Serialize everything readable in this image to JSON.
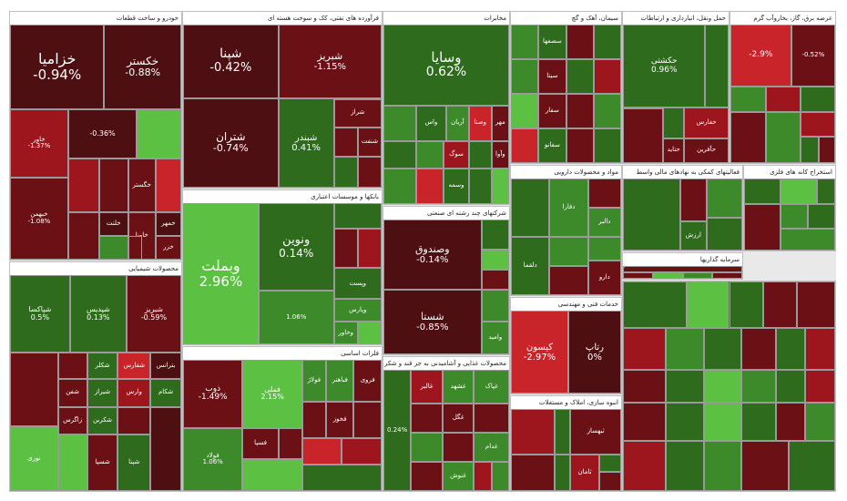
{
  "palette": {
    "dg": "#2e6b1d",
    "g": "#3d8a2a",
    "lg": "#5cc043",
    "br": "#4d0f12",
    "dr": "#6b1116",
    "r": "#9e161d",
    "rr": "#c8242a"
  },
  "sectors": [
    {
      "title": "خودرو و ساخت قطعات",
      "tiles": [
        {
          "name": "خزامیا",
          "pct": "-0.94%",
          "c": "br"
        },
        {
          "name": "خکستر",
          "pct": "-0.88%",
          "c": "br"
        },
        {
          "name": "خاور",
          "pct": "-1.37%",
          "c": "r"
        },
        {
          "name": "",
          "pct": "-0.36%",
          "c": "br"
        },
        {
          "name": "",
          "pct": "",
          "c": "lg"
        },
        {
          "name": "خبهمن",
          "pct": "-1.08%",
          "c": "dr"
        },
        {
          "name": "",
          "pct": "",
          "c": "r"
        },
        {
          "name": "",
          "pct": "",
          "c": "dr"
        },
        {
          "name": "خگستر",
          "pct": "",
          "c": "dr"
        },
        {
          "name": "",
          "pct": "",
          "c": "rr"
        },
        {
          "name": "",
          "pct": "",
          "c": "dr"
        },
        {
          "name": "خلنت",
          "pct": "",
          "c": "br"
        },
        {
          "name": "",
          "pct": "",
          "c": "g"
        },
        {
          "name": "خاونا",
          "pct": "",
          "c": "dr"
        },
        {
          "name": "خمهر",
          "pct": "",
          "c": "br"
        },
        {
          "name": "خزر",
          "pct": "",
          "c": "dr"
        },
        {
          "name": "",
          "pct": "",
          "c": "dr"
        }
      ]
    },
    {
      "title": "محصولات شیمیایی",
      "tiles": [
        {
          "name": "شپاکسا",
          "pct": "0.5%",
          "c": "dg"
        },
        {
          "name": "شپدیس",
          "pct": "0.13%",
          "c": "dg"
        },
        {
          "name": "شبریز",
          "pct": "-0.59%",
          "c": "dr"
        },
        {
          "name": "",
          "pct": "",
          "c": "dr"
        },
        {
          "name": "",
          "pct": "",
          "c": "dr"
        },
        {
          "name": "شکلر",
          "pct": "",
          "c": "dg"
        },
        {
          "name": "شفارس",
          "pct": "",
          "c": "rr"
        },
        {
          "name": "بترانس",
          "pct": "",
          "c": "br"
        },
        {
          "name": "شفن",
          "pct": "",
          "c": "dr"
        },
        {
          "name": "شیراز",
          "pct": "",
          "c": "dg"
        },
        {
          "name": "وارس",
          "pct": "",
          "c": "r"
        },
        {
          "name": "شکام",
          "pct": "",
          "c": "dg"
        },
        {
          "name": "نوری",
          "pct": "",
          "c": "lg"
        },
        {
          "name": "زاگرس",
          "pct": "",
          "c": "dr"
        },
        {
          "name": "شکربن",
          "pct": "",
          "c": "dg"
        },
        {
          "name": "",
          "pct": "",
          "c": "dr"
        },
        {
          "name": "",
          "pct": "",
          "c": "lg"
        },
        {
          "name": "شسپا",
          "pct": "",
          "c": "dr"
        },
        {
          "name": "شپنا",
          "pct": "",
          "c": "dg"
        },
        {
          "name": "",
          "pct": "",
          "c": "br"
        }
      ]
    },
    {
      "title": "فرآورده های نفتی، کک و سوخت هسته ای",
      "tiles": [
        {
          "name": "شپنا",
          "pct": "-0.42%",
          "c": "br"
        },
        {
          "name": "شبریز",
          "pct": "-1.15%",
          "c": "dr"
        },
        {
          "name": "شتران",
          "pct": "-0.74%",
          "c": "br"
        },
        {
          "name": "شبندر",
          "pct": "0.41%",
          "c": "dg"
        },
        {
          "name": "شراز",
          "pct": "",
          "c": "dr"
        },
        {
          "name": "",
          "pct": "",
          "c": "dr"
        },
        {
          "name": "شنفت",
          "pct": "",
          "c": "dr"
        },
        {
          "name": "",
          "pct": "",
          "c": "dg"
        },
        {
          "name": "",
          "pct": "",
          "c": "dr"
        },
        {
          "name": "",
          "pct": "",
          "c": "dr"
        }
      ]
    },
    {
      "title": "بانکها و موسسات اعتباری",
      "tiles": [
        {
          "name": "وبملت",
          "pct": "2.96%",
          "c": "lg"
        },
        {
          "name": "ونوین",
          "pct": "0.14%",
          "c": "dg"
        },
        {
          "name": "",
          "pct": "",
          "c": "dg"
        },
        {
          "name": "",
          "pct": "",
          "c": "dr"
        },
        {
          "name": "",
          "pct": "",
          "c": "r"
        },
        {
          "name": "وپست",
          "pct": "",
          "c": "dg"
        },
        {
          "name": "",
          "pct": "1.06%",
          "c": "g"
        },
        {
          "name": "وپارس",
          "pct": "",
          "c": "g"
        },
        {
          "name": "وخاور",
          "pct": "",
          "c": "g"
        },
        {
          "name": "",
          "pct": "",
          "c": "lg"
        }
      ]
    },
    {
      "title": "فلزات اساسی",
      "tiles": [
        {
          "name": "ذوب",
          "pct": "-1.49%",
          "c": "dr"
        },
        {
          "name": "فملی",
          "pct": "2.15%",
          "c": "lg"
        },
        {
          "name": "فولاد",
          "pct": "1.06%",
          "c": "g"
        },
        {
          "name": "فولاژ",
          "pct": "",
          "c": "g"
        },
        {
          "name": "فباهنر",
          "pct": "",
          "c": "g"
        },
        {
          "name": "فروی",
          "pct": "",
          "c": "dr"
        },
        {
          "name": "",
          "pct": "",
          "c": "dr"
        },
        {
          "name": "فخوز",
          "pct": "",
          "c": "dr"
        },
        {
          "name": "",
          "pct": "",
          "c": "dr"
        },
        {
          "name": "فسپا",
          "pct": "",
          "c": "dr"
        },
        {
          "name": "",
          "pct": "",
          "c": "dr"
        },
        {
          "name": "",
          "pct": "",
          "c": "rr"
        },
        {
          "name": "",
          "pct": "",
          "c": "r"
        },
        {
          "name": "",
          "pct": "",
          "c": "lg"
        },
        {
          "name": "",
          "pct": "",
          "c": "dg"
        }
      ]
    },
    {
      "title": "مخابرات",
      "tiles": [
        {
          "name": "وسایا",
          "pct": "0.62%",
          "c": "dg"
        },
        {
          "name": "",
          "pct": "",
          "c": "g"
        },
        {
          "name": "واس",
          "pct": "",
          "c": "dg"
        },
        {
          "name": "آریان",
          "pct": "",
          "c": "g"
        },
        {
          "name": "وصنا",
          "pct": "",
          "c": "rr"
        },
        {
          "name": "مهر",
          "pct": "",
          "c": "dr"
        },
        {
          "name": "",
          "pct": "",
          "c": "dg"
        },
        {
          "name": "",
          "pct": "",
          "c": "g"
        },
        {
          "name": "سوگ",
          "pct": "",
          "c": "r"
        },
        {
          "name": "",
          "pct": "",
          "c": "dg"
        },
        {
          "name": "وآوا",
          "pct": "",
          "c": "dr"
        },
        {
          "name": "",
          "pct": "",
          "c": "g"
        },
        {
          "name": "",
          "pct": "",
          "c": "rr"
        },
        {
          "name": "وسمه",
          "pct": "",
          "c": "dg"
        },
        {
          "name": "",
          "pct": "",
          "c": "dg"
        },
        {
          "name": "",
          "pct": "",
          "c": "lg"
        }
      ]
    },
    {
      "title": "شرکتهای چند رشته ای صنعتی",
      "tiles": [
        {
          "name": "وصندوق",
          "pct": "-0.14%",
          "c": "br"
        },
        {
          "name": "",
          "pct": "",
          "c": "dg"
        },
        {
          "name": "",
          "pct": "",
          "c": "lg"
        },
        {
          "name": "",
          "pct": "",
          "c": "dr"
        },
        {
          "name": "شستا",
          "pct": "-0.85%",
          "c": "br"
        },
        {
          "name": "",
          "pct": "",
          "c": "g"
        },
        {
          "name": "وامید",
          "pct": "",
          "c": "g"
        }
      ]
    },
    {
      "title": "محصولات غذایی و آشامیدنی به جز قند و شکر",
      "tiles": [
        {
          "name": "",
          "pct": "0.24%",
          "c": "dg"
        },
        {
          "name": "غالبر",
          "pct": "",
          "c": "r"
        },
        {
          "name": "غشهد",
          "pct": "",
          "c": "g"
        },
        {
          "name": "غپاک",
          "pct": "",
          "c": "g"
        },
        {
          "name": "",
          "pct": "",
          "c": "dr"
        },
        {
          "name": "غگل",
          "pct": "",
          "c": "dr"
        },
        {
          "name": "",
          "pct": "",
          "c": "dr"
        },
        {
          "name": "",
          "pct": "",
          "c": "g"
        },
        {
          "name": "",
          "pct": "",
          "c": "dr"
        },
        {
          "name": "غدام",
          "pct": "",
          "c": "g"
        },
        {
          "name": "",
          "pct": "",
          "c": "dr"
        },
        {
          "name": "غنوش",
          "pct": "",
          "c": "g"
        },
        {
          "name": "",
          "pct": "",
          "c": "r"
        },
        {
          "name": "",
          "pct": "",
          "c": "g"
        }
      ]
    },
    {
      "title": "سیمان، آهک و گچ",
      "tiles": [
        {
          "name": "",
          "pct": "",
          "c": "g"
        },
        {
          "name": "سصفها",
          "pct": "",
          "c": "dg"
        },
        {
          "name": "",
          "pct": "",
          "c": "dr"
        },
        {
          "name": "",
          "pct": "",
          "c": "dg"
        },
        {
          "name": "",
          "pct": "",
          "c": "g"
        },
        {
          "name": "سیتا",
          "pct": "",
          "c": "dr"
        },
        {
          "name": "",
          "pct": "",
          "c": "dg"
        },
        {
          "name": "",
          "pct": "",
          "c": "r"
        },
        {
          "name": "",
          "pct": "",
          "c": "lg"
        },
        {
          "name": "سفار",
          "pct": "",
          "c": "dr"
        },
        {
          "name": "",
          "pct": "",
          "c": "dr"
        },
        {
          "name": "",
          "pct": "",
          "c": "g"
        },
        {
          "name": "",
          "pct": "",
          "c": "rr"
        },
        {
          "name": "سفانو",
          "pct": "",
          "c": "dg"
        },
        {
          "name": "",
          "pct": "",
          "c": "dr"
        },
        {
          "name": "",
          "pct": "",
          "c": "dg"
        },
        {
          "name": "",
          "pct": "",
          "c": "g"
        }
      ]
    },
    {
      "title": "مواد و محصولات دارویی",
      "tiles": [
        {
          "name": "",
          "pct": "",
          "c": "dg"
        },
        {
          "name": "دفارا",
          "pct": "",
          "c": "g"
        },
        {
          "name": "",
          "pct": "",
          "c": "dr"
        },
        {
          "name": "دالبر",
          "pct": "",
          "c": "g"
        },
        {
          "name": "دلقما",
          "pct": "",
          "c": "dg"
        },
        {
          "name": "",
          "pct": "",
          "c": "rr"
        },
        {
          "name": "",
          "pct": "",
          "c": "g"
        },
        {
          "name": "دارو",
          "pct": "",
          "c": "dr"
        },
        {
          "name": "",
          "pct": "",
          "c": "g"
        },
        {
          "name": "",
          "pct": "",
          "c": "dr"
        }
      ]
    },
    {
      "title": "خدمات فنی و مهندسی",
      "tiles": [
        {
          "name": "کیسون",
          "pct": "-2.97%",
          "c": "rr"
        },
        {
          "name": "رتاپ",
          "pct": "0%",
          "c": "br"
        }
      ]
    },
    {
      "title": "انبوه سازی، املاک و مستغلات",
      "tiles": [
        {
          "name": "",
          "pct": "",
          "c": "r"
        },
        {
          "name": "",
          "pct": "",
          "c": "dg"
        },
        {
          "name": "ثبهساز",
          "pct": "",
          "c": "dr"
        },
        {
          "name": "",
          "pct": "",
          "c": "dr"
        },
        {
          "name": "",
          "pct": "",
          "c": "dg"
        },
        {
          "name": "ثامان",
          "pct": "",
          "c": "r"
        },
        {
          "name": "",
          "pct": "",
          "c": "dg"
        },
        {
          "name": "",
          "pct": "",
          "c": "dr"
        }
      ]
    },
    {
      "title": "حمل ونقل، انبارداری و ارتباطات",
      "tiles": [
        {
          "name": "حکشتی",
          "pct": "0.96%",
          "c": "dg"
        },
        {
          "name": "",
          "pct": "",
          "c": "dg"
        },
        {
          "name": "",
          "pct": "",
          "c": "dr"
        },
        {
          "name": "",
          "pct": "",
          "c": "dg"
        },
        {
          "name": "حتاید",
          "pct": "",
          "c": "dr"
        },
        {
          "name": "حفارس",
          "pct": "",
          "c": "r"
        },
        {
          "name": "حآفرین",
          "pct": "",
          "c": "dr"
        },
        {
          "name": "",
          "pct": "",
          "c": "dg"
        }
      ]
    },
    {
      "title": "فعالیتهای کمکی به نهادهای مالی واسط",
      "tiles": [
        {
          "name": "",
          "pct": "",
          "c": "dg"
        },
        {
          "name": "",
          "pct": "",
          "c": "dr"
        },
        {
          "name": "ارزش",
          "pct": "",
          "c": "dg"
        },
        {
          "name": "",
          "pct": "",
          "c": "g"
        },
        {
          "name": "",
          "pct": "",
          "c": "dg"
        }
      ]
    },
    {
      "title": "سرمایه گذاریها",
      "tiles": [
        {
          "name": "",
          "pct": "",
          "c": "dr"
        },
        {
          "name": "",
          "pct": "",
          "c": "dr"
        },
        {
          "name": "",
          "pct": "",
          "c": "lg"
        },
        {
          "name": "",
          "pct": "",
          "c": "g"
        },
        {
          "name": "",
          "pct": "",
          "c": "dr"
        },
        {
          "name": "",
          "pct": "",
          "c": "br"
        }
      ]
    },
    {
      "title": "عرضه برق، گاز، بخاروآب گرم",
      "tiles": [
        {
          "name": "",
          "pct": "-2.9%",
          "c": "rr"
        },
        {
          "name": "",
          "pct": "-0.52%",
          "c": "dr"
        },
        {
          "name": "",
          "pct": "",
          "c": "g"
        },
        {
          "name": "",
          "pct": "",
          "c": "r"
        },
        {
          "name": "",
          "pct": "",
          "c": "dg"
        },
        {
          "name": "",
          "pct": "",
          "c": "dr"
        },
        {
          "name": "",
          "pct": "",
          "c": "g"
        },
        {
          "name": "",
          "pct": "",
          "c": "r"
        },
        {
          "name": "",
          "pct": "",
          "c": "dg"
        },
        {
          "name": "",
          "pct": "",
          "c": "dr"
        }
      ]
    },
    {
      "title": "استخراج کانه های فلزی",
      "tiles": [
        {
          "name": "",
          "pct": "",
          "c": "dg"
        },
        {
          "name": "",
          "pct": "",
          "c": "lg"
        },
        {
          "name": "",
          "pct": "",
          "c": "dg"
        },
        {
          "name": "",
          "pct": "",
          "c": "dr"
        },
        {
          "name": "",
          "pct": "",
          "c": "g"
        },
        {
          "name": "",
          "pct": "",
          "c": "dg"
        },
        {
          "name": "",
          "pct": "",
          "c": "g"
        }
      ]
    },
    {
      "title": "",
      "tiles": [
        {
          "name": "",
          "pct": "",
          "c": "dg"
        },
        {
          "name": "",
          "pct": "",
          "c": "lg"
        },
        {
          "name": "",
          "pct": "",
          "c": "dg"
        },
        {
          "name": "",
          "pct": "",
          "c": "dr"
        },
        {
          "name": "",
          "pct": "",
          "c": "dr"
        },
        {
          "name": "",
          "pct": "",
          "c": "r"
        },
        {
          "name": "",
          "pct": "",
          "c": "g"
        },
        {
          "name": "",
          "pct": "",
          "c": "dg"
        },
        {
          "name": "",
          "pct": "",
          "c": "dr"
        },
        {
          "name": "",
          "pct": "",
          "c": "dg"
        },
        {
          "name": "",
          "pct": "",
          "c": "r"
        },
        {
          "name": "",
          "pct": "",
          "c": "dr"
        },
        {
          "name": "",
          "pct": "",
          "c": "dg"
        },
        {
          "name": "",
          "pct": "",
          "c": "lg"
        },
        {
          "name": "",
          "pct": "",
          "c": "g"
        },
        {
          "name": "",
          "pct": "",
          "c": "dg"
        },
        {
          "name": "",
          "pct": "",
          "c": "r"
        },
        {
          "name": "",
          "pct": "",
          "c": "dr"
        },
        {
          "name": "",
          "pct": "",
          "c": "dg"
        },
        {
          "name": "",
          "pct": "",
          "c": "lg"
        },
        {
          "name": "",
          "pct": "",
          "c": "dg"
        },
        {
          "name": "",
          "pct": "",
          "c": "dr"
        },
        {
          "name": "",
          "pct": "",
          "c": "g"
        },
        {
          "name": "",
          "pct": "",
          "c": "r"
        },
        {
          "name": "",
          "pct": "",
          "c": "dg"
        },
        {
          "name": "",
          "pct": "",
          "c": "g"
        },
        {
          "name": "",
          "pct": "",
          "c": "dr"
        },
        {
          "name": "",
          "pct": "",
          "c": "dg"
        }
      ]
    }
  ]
}
